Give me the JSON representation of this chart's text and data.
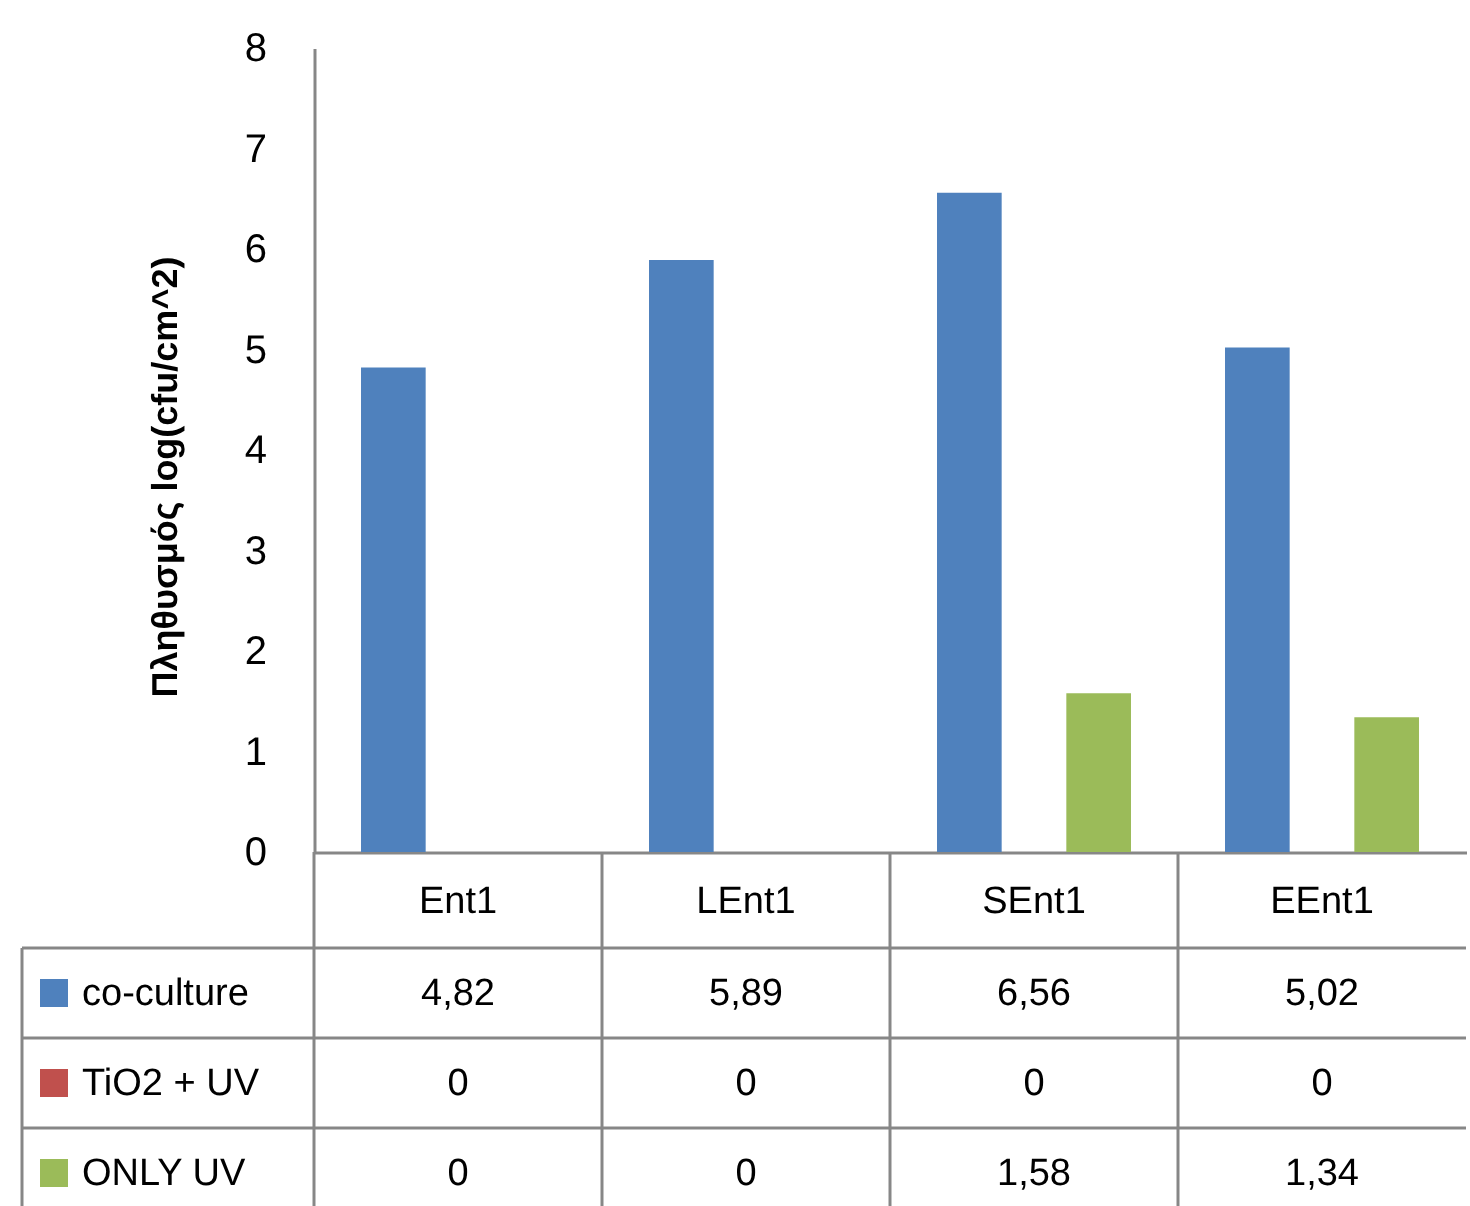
{
  "chart_data": {
    "type": "bar",
    "ylabel": "Πληθυσμός  log(cfu/cm^2)",
    "categories": [
      "Ent1",
      "LEnt1",
      "SEnt1",
      "EEnt1"
    ],
    "series": [
      {
        "name": "co-culture",
        "color": "#4f81bd",
        "values": [
          4.82,
          5.89,
          6.56,
          5.02
        ],
        "value_labels": [
          "4,82",
          "5,89",
          "6,56",
          "5,02"
        ]
      },
      {
        "name": "TiO2 + UV",
        "color": "#c0504d",
        "values": [
          0,
          0,
          0,
          0
        ],
        "value_labels": [
          "0",
          "0",
          "0",
          "0"
        ]
      },
      {
        "name": "ONLY UV",
        "color": "#9bbb59",
        "values": [
          0,
          0,
          1.58,
          1.34
        ],
        "value_labels": [
          "0",
          "0",
          "1,58",
          "1,34"
        ]
      }
    ],
    "ylim": [
      0,
      8
    ],
    "yticks": [
      0,
      1,
      2,
      3,
      4,
      5,
      6,
      7,
      8
    ],
    "legend": "bottom left",
    "grid": false
  }
}
